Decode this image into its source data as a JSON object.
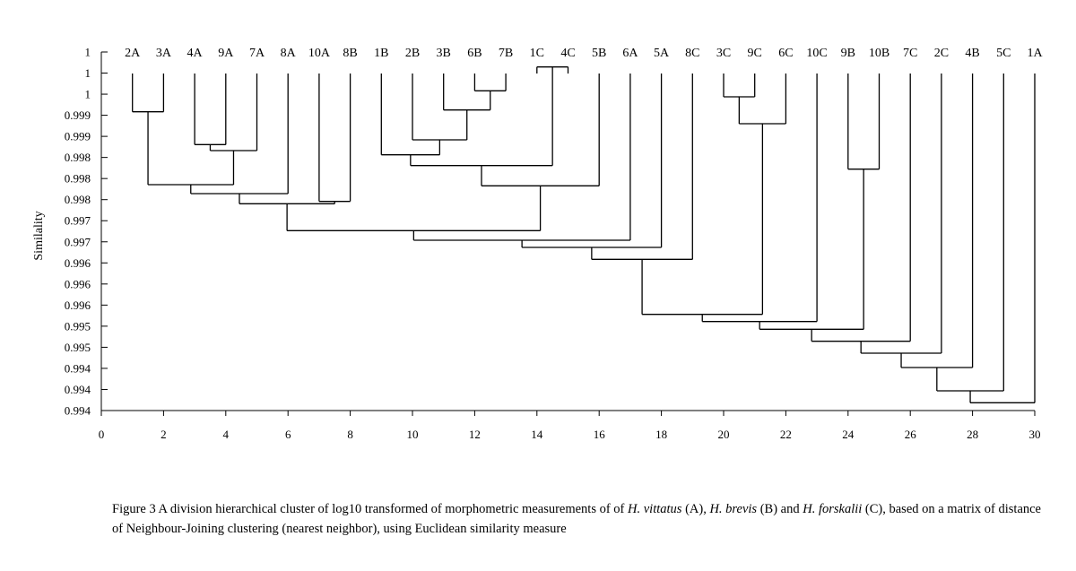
{
  "chart_data": {
    "type": "dendrogram",
    "ylabel": "Similality",
    "x_ticks": [
      0,
      2,
      4,
      6,
      8,
      10,
      12,
      14,
      16,
      18,
      20,
      22,
      24,
      26,
      28,
      30
    ],
    "y_tick_labels": [
      "1",
      "1",
      "1",
      "0.999",
      "0.999",
      "0.998",
      "0.998",
      "0.998",
      "0.997",
      "0.997",
      "0.996",
      "0.996",
      "0.996",
      "0.995",
      "0.995",
      "0.994",
      "0.994",
      "0.994"
    ],
    "ylim": [
      0.994,
      1.0
    ],
    "leaves": [
      "2A",
      "3A",
      "4A",
      "9A",
      "7A",
      "8A",
      "10A",
      "8B",
      "1B",
      "2B",
      "3B",
      "6B",
      "7B",
      "1C",
      "4C",
      "5B",
      "6A",
      "5A",
      "8C",
      "3C",
      "9C",
      "6C",
      "10C",
      "9B",
      "10B",
      "7C",
      "2C",
      "4B",
      "5C",
      "1A"
    ],
    "leaf_x": [
      1,
      2,
      3,
      4,
      5,
      6,
      7,
      8,
      9,
      10,
      11,
      12,
      13,
      14,
      15,
      16,
      17,
      18,
      19,
      20,
      21,
      22,
      23,
      24,
      25,
      26,
      27,
      28,
      29,
      30
    ],
    "merges": [
      {
        "left": "2A",
        "right": "3A",
        "similarity": 0.999
      },
      {
        "left": "6B",
        "right": "7B",
        "similarity": 0.99935
      },
      {
        "left": "1C",
        "right": "4C",
        "similarity": 0.99975
      },
      {
        "left": "3C",
        "right": "9C",
        "similarity": 0.99925
      },
      {
        "left": "4A",
        "right": "9A",
        "similarity": 0.99845
      },
      {
        "left": "3B",
        "right": "6B,7B",
        "similarity": 0.99903
      },
      {
        "left": "4A,9A",
        "right": "7A",
        "similarity": 0.99835
      },
      {
        "left": "9B",
        "right": "10B",
        "similarity": 0.99804
      },
      {
        "left": "2B",
        "right": "3B,6B,7B",
        "similarity": 0.99853
      },
      {
        "left": "3C,9C",
        "right": "6C",
        "similarity": 0.9988
      },
      {
        "left": "1B",
        "right": "2B,3B,6B,7B",
        "similarity": 0.99828
      },
      {
        "left": "10A",
        "right": "8B",
        "similarity": 0.9975
      },
      {
        "left": "2A,3A",
        "right": "4A,9A,7A",
        "similarity": 0.99778
      },
      {
        "left": "1B-7B",
        "right": "1C,4C",
        "similarity": 0.9981
      },
      {
        "left": "1B-4C",
        "right": "5B",
        "similarity": 0.99776
      },
      {
        "left": "2A-7A",
        "right": "8A",
        "similarity": 0.99763
      },
      {
        "left": "2A-8A",
        "right": "10A,8B",
        "similarity": 0.99746
      },
      {
        "left": "2A-8B",
        "right": "1B-5B",
        "similarity": 0.99701
      },
      {
        "left": "2A-5B",
        "right": "6A",
        "similarity": 0.99685
      },
      {
        "left": "2A-6A",
        "right": "5A",
        "similarity": 0.99673
      },
      {
        "left": "2A-5A",
        "right": "8C",
        "similarity": 0.99653
      },
      {
        "left": "2A-8C",
        "right": "3C,9C,6C",
        "similarity": 0.99561
      },
      {
        "left": "2A-6C",
        "right": "10C",
        "similarity": 0.99549
      },
      {
        "left": "2A-10C",
        "right": "9B,10B",
        "similarity": 0.99536
      },
      {
        "left": "2A-10B",
        "right": "7C",
        "similarity": 0.99516
      },
      {
        "left": "2A-7C",
        "right": "2C",
        "similarity": 0.99496
      },
      {
        "left": "2A-2C",
        "right": "4B",
        "similarity": 0.99472
      },
      {
        "left": "2A-4B",
        "right": "5C",
        "similarity": 0.99433
      },
      {
        "left": "2A-5C",
        "right": "1A",
        "similarity": 0.99413
      }
    ]
  },
  "caption": {
    "lead": "Figure 3 A division hierarchical cluster of log10 transformed of morphometric measurements of of ",
    "sp1": "H. vittatus",
    "mid1": " (A), ",
    "sp2": "H. brevis",
    "mid2": " (B) and ",
    "sp3": "H. forskalii",
    "tail": " (C), based on a matrix of distance of Neighbour-Joining clustering (nearest neighbor), using Euclidean similarity measure"
  }
}
